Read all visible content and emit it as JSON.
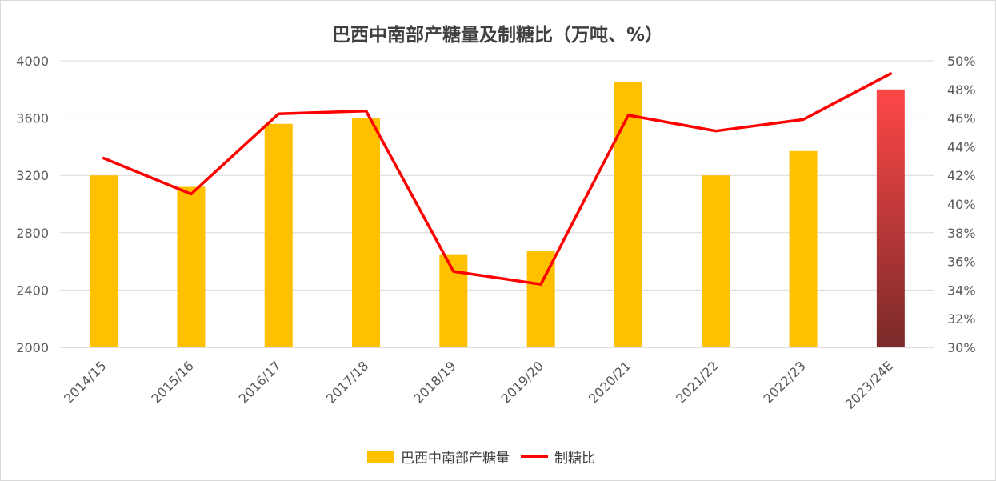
{
  "chart_data": {
    "type": "bar+line",
    "title": "巴西中南部产糖量及制糖比（万吨、%）",
    "categories": [
      "2014/15",
      "2015/16",
      "2016/17",
      "2017/18",
      "2018/19",
      "2019/20",
      "2020/21",
      "2021/22",
      "2022/23",
      "2023/24E"
    ],
    "series": [
      {
        "name": "巴西中南部产糖量",
        "type": "bar",
        "axis": "left",
        "values": [
          3200,
          3120,
          3560,
          3600,
          2650,
          2670,
          3850,
          3200,
          3370,
          3800
        ],
        "color": "#ffc000",
        "highlight": {
          "index": 9,
          "gradient_top": "#ff4747",
          "gradient_bottom": "#7a2a2a"
        }
      },
      {
        "name": "制糖比",
        "type": "line",
        "axis": "right",
        "values": [
          43.2,
          40.7,
          46.3,
          46.5,
          35.3,
          34.4,
          46.2,
          45.1,
          45.9,
          49.1
        ],
        "color": "#ff0000"
      }
    ],
    "y_left": {
      "min": 2000,
      "max": 4000,
      "ticks": [
        "2000",
        "2400",
        "2800",
        "3200",
        "3600",
        "4000"
      ]
    },
    "y_right": {
      "min": 30,
      "max": 50,
      "ticks": [
        "30%",
        "32%",
        "34%",
        "36%",
        "38%",
        "40%",
        "42%",
        "44%",
        "46%",
        "48%",
        "50%"
      ]
    },
    "grid": true,
    "legend_position": "bottom"
  }
}
